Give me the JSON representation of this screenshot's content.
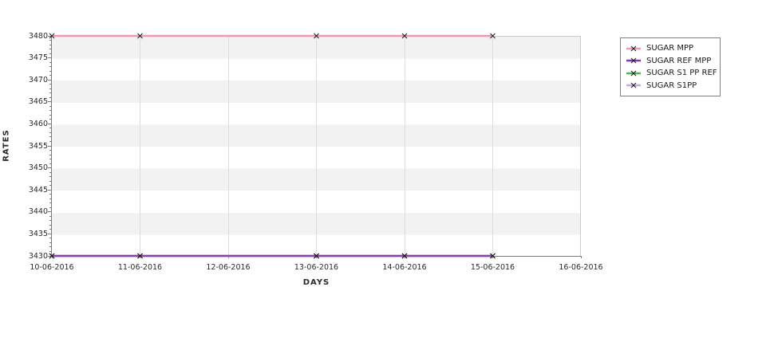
{
  "page": {
    "background": "#ffffff"
  },
  "chart_data": {
    "type": "line",
    "title": "",
    "xlabel": "DAYS",
    "ylabel": "RATES",
    "x_tick_labels": [
      "10-06-2016",
      "11-06-2016",
      "12-06-2016",
      "13-06-2016",
      "14-06-2016",
      "15-06-2016",
      "16-06-2016"
    ],
    "data_x_indices": [
      0,
      1,
      3,
      4,
      5
    ],
    "ylim": [
      3430,
      3480
    ],
    "ytick_step": 5,
    "y_minor_step": 1,
    "y_tick_labels": [
      "3430",
      "3435",
      "3440",
      "3445",
      "3450",
      "3455",
      "3460",
      "3465",
      "3470",
      "3475",
      "3480"
    ],
    "grid": "vertical",
    "band_colors": [
      "#f2f2f2",
      "#ffffff"
    ],
    "marker": "x",
    "marker_color": "#1a1a1a",
    "legend_position": "right",
    "series": [
      {
        "name": "SUGAR MPP",
        "color": "#ef97bb",
        "values": [
          3480,
          3480,
          3480,
          3480,
          3480
        ]
      },
      {
        "name": "SUGAR REF MPP",
        "color": "#8b35b0",
        "values": [
          3430,
          3430,
          3430,
          3430,
          3430
        ]
      },
      {
        "name": "SUGAR S1 PP REF",
        "color": "#4db84d",
        "values": [
          3430,
          3430,
          3430,
          3430,
          3430
        ]
      },
      {
        "name": "SUGAR S1PP",
        "color": "#c9a8e0",
        "values": [
          3430,
          3430,
          3430,
          3430,
          3430
        ]
      }
    ]
  }
}
